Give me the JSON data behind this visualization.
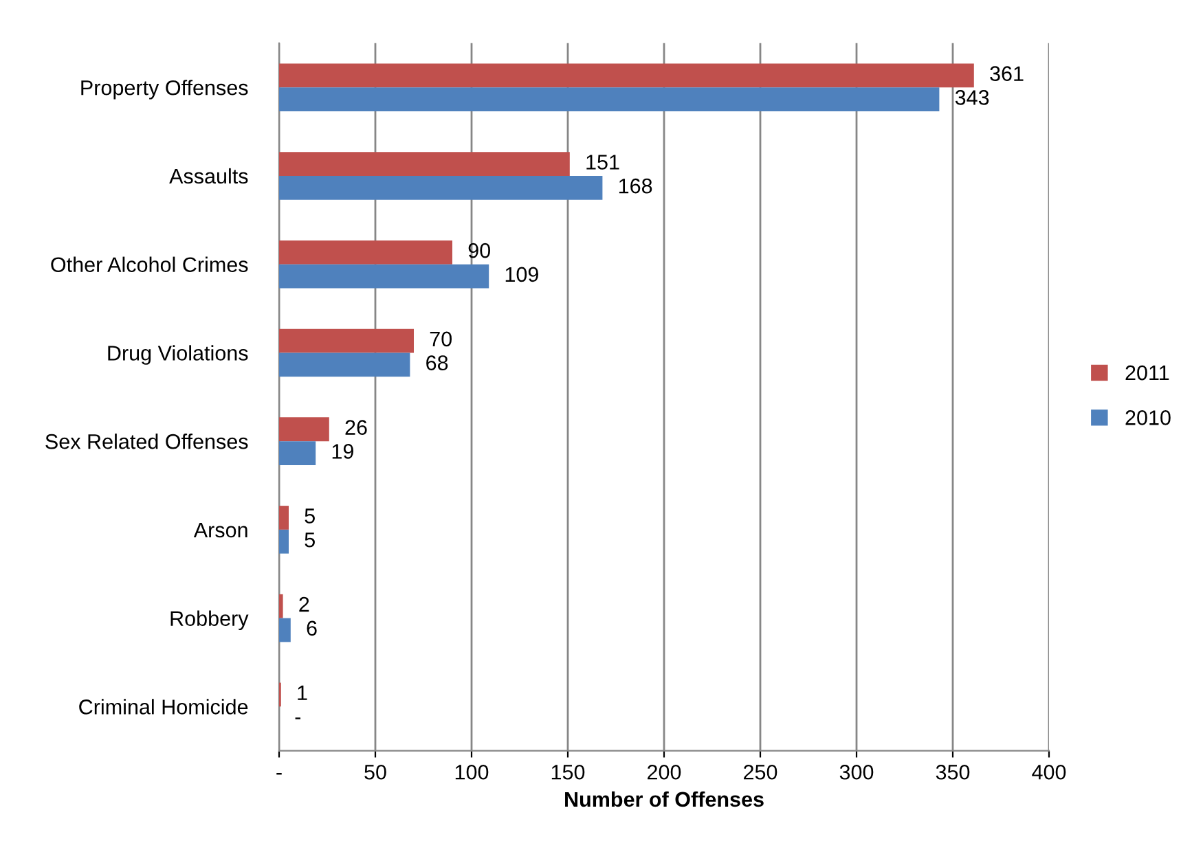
{
  "chart_data": {
    "type": "bar",
    "orientation": "horizontal",
    "xlabel": "Number of Offenses",
    "categories": [
      "Property Offenses",
      "Assaults",
      "Other Alcohol Crimes",
      "Drug Violations",
      "Sex Related Offenses",
      "Arson",
      "Robbery",
      "Criminal Homicide"
    ],
    "series": [
      {
        "name": "2011",
        "color": "#c0504d",
        "values": [
          361,
          151,
          90,
          70,
          26,
          5,
          2,
          1
        ],
        "value_labels": [
          "361",
          "151",
          "90",
          "70",
          "26",
          "5",
          "2",
          "1"
        ]
      },
      {
        "name": "2010",
        "color": "#4f81bd",
        "values": [
          343,
          168,
          109,
          68,
          19,
          5,
          6,
          0
        ],
        "value_labels": [
          "343",
          "168",
          "109",
          "68",
          "19",
          "5",
          "6",
          "-"
        ]
      }
    ],
    "xlim": [
      0,
      400
    ],
    "xticks": [
      {
        "value": 0,
        "label": "-"
      },
      50,
      100,
      150,
      200,
      250,
      300,
      350,
      400
    ],
    "grid": "x",
    "legend": "right"
  }
}
